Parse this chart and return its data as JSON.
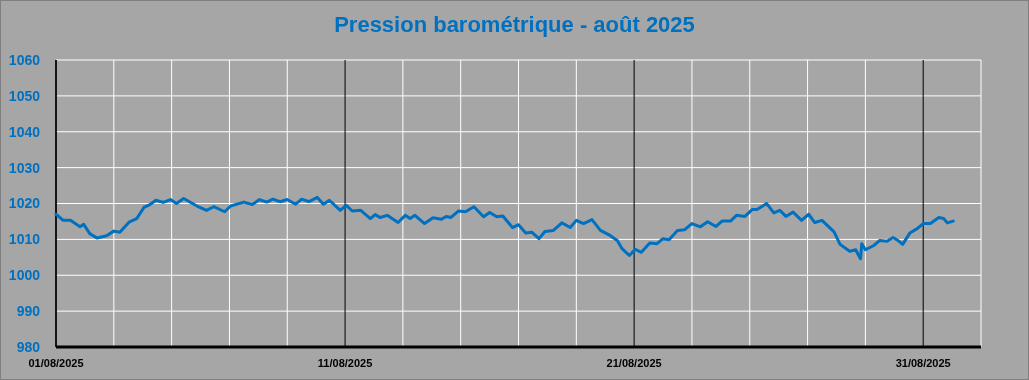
{
  "chart_data": {
    "type": "line",
    "title": "Pression barométrique - août 2025",
    "x": [
      "2025-08-01T00:00",
      "2025-08-01T06:00",
      "2025-08-01T12:00",
      "2025-08-01T20:00",
      "2025-08-01T23:00",
      "2025-08-02T04:00",
      "2025-08-02T10:00",
      "2025-08-02T18:00",
      "2025-08-03T00:00",
      "2025-08-03T05:00",
      "2025-08-03T13:00",
      "2025-08-03T19:00",
      "2025-08-04T01:00",
      "2025-08-04T06:00",
      "2025-08-04T11:00",
      "2025-08-04T17:00",
      "2025-08-04T23:00",
      "2025-08-05T04:00",
      "2025-08-05T10:00",
      "2025-08-05T21:00",
      "2025-08-06T05:00",
      "2025-08-06T11:00",
      "2025-08-06T20:00",
      "2025-08-07T01:00",
      "2025-08-07T12:00",
      "2025-08-07T19:00",
      "2025-08-08T01:00",
      "2025-08-08T07:00",
      "2025-08-08T12:00",
      "2025-08-08T18:00",
      "2025-08-09T00:00",
      "2025-08-09T07:00",
      "2025-08-09T12:00",
      "2025-08-09T18:00",
      "2025-08-10T01:00",
      "2025-08-10T06:00",
      "2025-08-10T11:00",
      "2025-08-10T20:00",
      "2025-08-11T01:00",
      "2025-08-11T06:00",
      "2025-08-11T13:00",
      "2025-08-11T21:00",
      "2025-08-12T01:00",
      "2025-08-12T05:00",
      "2025-08-12T11:00",
      "2025-08-12T20:00",
      "2025-08-13T02:00",
      "2025-08-13T06:00",
      "2025-08-13T10:00",
      "2025-08-13T18:00",
      "2025-08-14T01:00",
      "2025-08-14T08:00",
      "2025-08-14T12:00",
      "2025-08-14T16:00",
      "2025-08-14T22:00",
      "2025-08-15T04:00",
      "2025-08-15T11:00",
      "2025-08-15T19:00",
      "2025-08-16T00:00",
      "2025-08-16T06:00",
      "2025-08-16T11:00",
      "2025-08-16T19:00",
      "2025-08-17T00:00",
      "2025-08-17T06:00",
      "2025-08-17T11:00",
      "2025-08-17T17:00",
      "2025-08-17T22:00",
      "2025-08-18T05:00",
      "2025-08-18T12:00",
      "2025-08-18T19:00",
      "2025-08-19T00:00",
      "2025-08-19T06:00",
      "2025-08-19T13:00",
      "2025-08-19T20:00",
      "2025-08-20T04:00",
      "2025-08-20T10:00",
      "2025-08-20T14:00",
      "2025-08-20T20:00",
      "2025-08-21T01:00",
      "2025-08-21T06:00",
      "2025-08-21T13:00",
      "2025-08-21T19:00",
      "2025-08-22T00:00",
      "2025-08-22T05:00",
      "2025-08-22T12:00",
      "2025-08-22T18:00",
      "2025-08-23T00:00",
      "2025-08-23T07:00",
      "2025-08-23T13:00",
      "2025-08-23T20:00",
      "2025-08-24T01:00",
      "2025-08-24T08:00",
      "2025-08-24T13:00",
      "2025-08-24T20:00",
      "2025-08-25T02:00",
      "2025-08-25T06:00",
      "2025-08-25T14:00",
      "2025-08-25T20:00",
      "2025-08-26T01:00",
      "2025-08-26T06:00",
      "2025-08-26T12:00",
      "2025-08-26T19:00",
      "2025-08-27T01:00",
      "2025-08-27T06:00",
      "2025-08-27T12:00",
      "2025-08-27T22:00",
      "2025-08-28T03:00",
      "2025-08-28T11:00",
      "2025-08-28T16:00",
      "2025-08-28T18:00",
      "2025-08-28T20:00",
      "2025-08-28T21:00",
      "2025-08-29T00:00",
      "2025-08-29T07:00",
      "2025-08-29T12:00",
      "2025-08-29T18:00",
      "2025-08-29T23:00",
      "2025-08-30T03:00",
      "2025-08-30T07:00",
      "2025-08-30T13:00",
      "2025-08-30T19:00",
      "2025-08-31T00:00",
      "2025-08-31T06:00",
      "2025-08-31T13:00",
      "2025-08-31T17:00",
      "2025-08-31T20:00",
      "2025-09-01T01:00"
    ],
    "series": [
      {
        "color": "#0070c0",
        "values": [
          1017.0,
          1015.3,
          1015.3,
          1013.5,
          1014.2,
          1011.6,
          1010.4,
          1011.0,
          1012.3,
          1012.0,
          1014.9,
          1015.8,
          1018.9,
          1019.7,
          1020.9,
          1020.3,
          1021.1,
          1020.0,
          1021.4,
          1019.3,
          1018.1,
          1019.1,
          1017.7,
          1019.3,
          1020.4,
          1019.7,
          1021.1,
          1020.4,
          1021.2,
          1020.5,
          1021.1,
          1019.8,
          1021.2,
          1020.5,
          1021.7,
          1019.8,
          1020.9,
          1018.1,
          1019.5,
          1017.9,
          1018.1,
          1015.8,
          1016.9,
          1016.1,
          1016.7,
          1014.7,
          1016.7,
          1015.8,
          1016.7,
          1014.4,
          1016.0,
          1015.6,
          1016.4,
          1016.1,
          1017.9,
          1017.7,
          1019.1,
          1016.3,
          1017.5,
          1016.3,
          1016.5,
          1013.3,
          1014.1,
          1011.8,
          1012.0,
          1010.2,
          1012.2,
          1012.5,
          1014.6,
          1013.3,
          1015.3,
          1014.4,
          1015.5,
          1012.5,
          1011.1,
          1009.7,
          1007.4,
          1005.5,
          1007.2,
          1006.4,
          1009.0,
          1008.8,
          1010.2,
          1009.9,
          1012.5,
          1012.7,
          1014.4,
          1013.5,
          1014.9,
          1013.6,
          1015.1,
          1015.1,
          1016.7,
          1016.4,
          1018.3,
          1018.3,
          1020.0,
          1017.4,
          1018.1,
          1016.4,
          1017.6,
          1015.3,
          1017.0,
          1014.7,
          1015.3,
          1012.1,
          1008.6,
          1006.7,
          1007.1,
          1005.8,
          1004.6,
          1008.8,
          1007.1,
          1008.3,
          1009.7,
          1009.5,
          1010.5,
          1009.7,
          1008.6,
          1011.8,
          1013.0,
          1014.4,
          1014.4,
          1016.1,
          1015.8,
          1014.6,
          1015.1
        ]
      }
    ],
    "xlim": [
      "2025-08-01",
      "2025-09-02"
    ],
    "xticks": [
      {
        "value": "2025-08-01",
        "label": "01/08/2025"
      },
      {
        "value": "2025-08-03",
        "label": null
      },
      {
        "value": "2025-08-05",
        "label": null
      },
      {
        "value": "2025-08-07",
        "label": null
      },
      {
        "value": "2025-08-09",
        "label": null
      },
      {
        "value": "2025-08-11",
        "label": "11/08/2025"
      },
      {
        "value": "2025-08-13",
        "label": null
      },
      {
        "value": "2025-08-15",
        "label": null
      },
      {
        "value": "2025-08-17",
        "label": null
      },
      {
        "value": "2025-08-19",
        "label": null
      },
      {
        "value": "2025-08-21",
        "label": "21/08/2025"
      },
      {
        "value": "2025-08-23",
        "label": null
      },
      {
        "value": "2025-08-25",
        "label": null
      },
      {
        "value": "2025-08-27",
        "label": null
      },
      {
        "value": "2025-08-29",
        "label": null
      },
      {
        "value": "2025-08-31",
        "label": "31/08/2025"
      },
      {
        "value": "2025-09-02",
        "label": null
      }
    ],
    "ylim": [
      980,
      1060
    ],
    "yticks": [
      980,
      990,
      1000,
      1010,
      1020,
      1030,
      1040,
      1050,
      1060
    ],
    "grid": true,
    "marker": "none",
    "line_style": "solid"
  }
}
